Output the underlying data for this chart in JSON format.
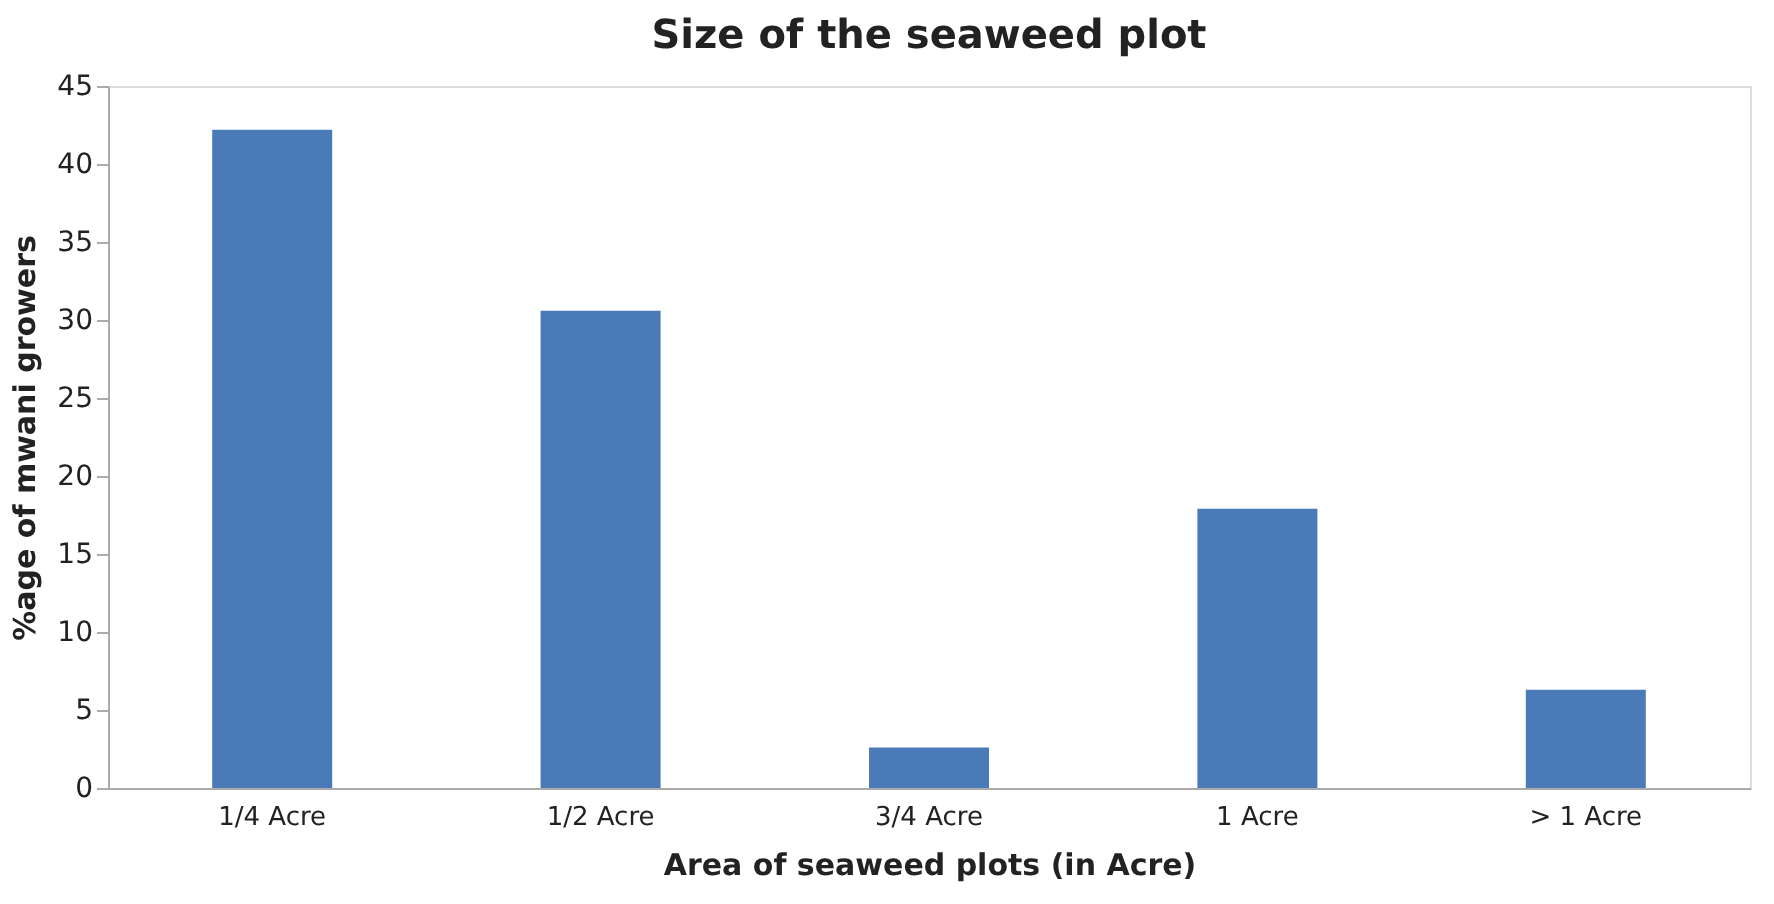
{
  "chart_data": {
    "type": "bar",
    "title": "Size of the seaweed plot",
    "xlabel": "Area of seaweed plots (in Acre)",
    "ylabel": "%age of mwani growers",
    "categories": [
      "1/4 Acre",
      "1/2 Acre",
      "3/4 Acre",
      "1 Acre",
      "> 1 Acre"
    ],
    "values": [
      42.2,
      30.6,
      2.6,
      17.9,
      6.3
    ],
    "color": "#4a7ab8",
    "ylim": [
      0,
      45
    ],
    "yticks": [
      0,
      5,
      10,
      15,
      20,
      25,
      30,
      35,
      40,
      45
    ],
    "grid": false
  }
}
